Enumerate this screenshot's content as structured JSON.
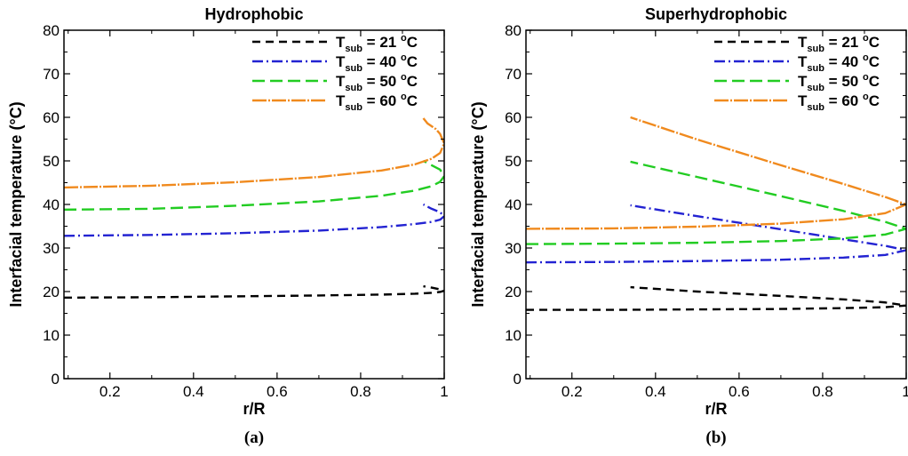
{
  "chart_data": [
    {
      "type": "line",
      "title": "Hydrophobic",
      "panel_label": "(a)",
      "xlabel": "r/R",
      "ylabel": "Interfacial temperature (°C)",
      "xlim": [
        0.09,
        1.0
      ],
      "ylim": [
        0,
        80
      ],
      "xticks": [
        0.2,
        0.4,
        0.6,
        0.8,
        1
      ],
      "xtick_labels": [
        "0.2",
        "0.4",
        "0.6",
        "0.8",
        "1"
      ],
      "yticks": [
        0,
        10,
        20,
        30,
        40,
        50,
        60,
        70,
        80
      ],
      "ytick_labels": [
        "0",
        "10",
        "20",
        "30",
        "40",
        "50",
        "60",
        "70",
        "80"
      ],
      "grid": false,
      "legend_position": "top-right",
      "series": [
        {
          "name": "T_sub = 21 °C",
          "legend_main": "T",
          "legend_sub": "sub",
          "legend_rest": " = 21 ",
          "legend_unit": "C",
          "color": "#000000",
          "dash": "9,6",
          "x": [
            0.09,
            0.3,
            0.5,
            0.7,
            0.85,
            0.93,
            0.97,
            0.99,
            1.0,
            0.99,
            0.97,
            0.95
          ],
          "y": [
            18.6,
            18.7,
            18.9,
            19.1,
            19.3,
            19.5,
            19.7,
            19.9,
            20.2,
            20.5,
            20.9,
            21.2
          ]
        },
        {
          "name": "T_sub = 40 °C",
          "legend_main": "T",
          "legend_sub": "sub",
          "legend_rest": " = 40 ",
          "legend_unit": "C",
          "color": "#2323d2",
          "dash": "12,4,2,4",
          "x": [
            0.09,
            0.3,
            0.5,
            0.7,
            0.85,
            0.93,
            0.97,
            0.99,
            1.0,
            0.99,
            0.97,
            0.95
          ],
          "y": [
            32.8,
            33.0,
            33.4,
            34.0,
            34.8,
            35.5,
            36.0,
            36.5,
            37.3,
            38.2,
            39.0,
            40.0
          ]
        },
        {
          "name": "T_sub = 50 °C",
          "legend_main": "T",
          "legend_sub": "sub",
          "legend_rest": " = 50 ",
          "legend_unit": "C",
          "color": "#22cc22",
          "dash": "14,6",
          "x": [
            0.09,
            0.3,
            0.5,
            0.7,
            0.85,
            0.93,
            0.97,
            0.99,
            1.0,
            0.99,
            0.97,
            0.95
          ],
          "y": [
            38.8,
            39.0,
            39.7,
            40.7,
            42.0,
            43.2,
            44.2,
            45.2,
            46.5,
            48.0,
            49.0,
            50.0
          ]
        },
        {
          "name": "T_sub = 60 °C",
          "legend_main": "T",
          "legend_sub": "sub",
          "legend_rest": " = 60 ",
          "legend_unit": "C",
          "color": "#f08a1e",
          "dash": "16,2,2,2",
          "x": [
            0.09,
            0.3,
            0.5,
            0.7,
            0.85,
            0.93,
            0.97,
            0.99,
            1.0,
            0.99,
            0.98,
            0.96,
            0.95
          ],
          "y": [
            43.9,
            44.3,
            45.1,
            46.3,
            47.8,
            49.2,
            50.5,
            51.8,
            54.0,
            56.2,
            57.3,
            58.6,
            59.8
          ]
        }
      ]
    },
    {
      "type": "line",
      "title": "Superhydrophobic",
      "panel_label": "(b)",
      "xlabel": "r/R",
      "ylabel": "Interfacial temperature (°C)",
      "xlim": [
        0.09,
        1.0
      ],
      "ylim": [
        0,
        80
      ],
      "xticks": [
        0.2,
        0.4,
        0.6,
        0.8,
        1
      ],
      "xtick_labels": [
        "0.2",
        "0.4",
        "0.6",
        "0.8",
        "1"
      ],
      "yticks": [
        0,
        10,
        20,
        30,
        40,
        50,
        60,
        70,
        80
      ],
      "ytick_labels": [
        "0",
        "10",
        "20",
        "30",
        "40",
        "50",
        "60",
        "70",
        "80"
      ],
      "grid": false,
      "legend_position": "top-right",
      "series": [
        {
          "name": "T_sub = 21 °C",
          "legend_main": "T",
          "legend_sub": "sub",
          "legend_rest": " = 21 ",
          "legend_unit": "C",
          "color": "#000000",
          "dash": "9,6",
          "x": [
            0.09,
            0.3,
            0.5,
            0.7,
            0.85,
            0.95,
            1.0,
            0.95,
            0.85,
            0.7,
            0.5,
            0.34
          ],
          "y": [
            15.8,
            15.8,
            15.9,
            16.0,
            16.2,
            16.4,
            16.8,
            17.5,
            18.2,
            19.0,
            20.0,
            21.0
          ]
        },
        {
          "name": "T_sub = 40 °C",
          "legend_main": "T",
          "legend_sub": "sub",
          "legend_rest": " = 40 ",
          "legend_unit": "C",
          "color": "#2323d2",
          "dash": "12,4,2,4",
          "x": [
            0.09,
            0.3,
            0.5,
            0.7,
            0.85,
            0.95,
            1.0,
            0.95,
            0.85,
            0.7,
            0.5,
            0.34
          ],
          "y": [
            26.7,
            26.8,
            27.0,
            27.3,
            27.8,
            28.4,
            29.5,
            30.5,
            32.0,
            34.3,
            37.3,
            39.8
          ]
        },
        {
          "name": "T_sub = 50 °C",
          "legend_main": "T",
          "legend_sub": "sub",
          "legend_rest": " = 50 ",
          "legend_unit": "C",
          "color": "#22cc22",
          "dash": "14,6",
          "x": [
            0.09,
            0.3,
            0.5,
            0.7,
            0.85,
            0.95,
            1.0,
            0.95,
            0.85,
            0.7,
            0.5,
            0.34
          ],
          "y": [
            30.9,
            31.0,
            31.2,
            31.6,
            32.2,
            33.1,
            34.4,
            36.0,
            38.5,
            41.9,
            46.3,
            49.8
          ]
        },
        {
          "name": "T_sub = 60 °C",
          "legend_main": "T",
          "legend_sub": "sub",
          "legend_rest": " = 60 ",
          "legend_unit": "C",
          "color": "#f08a1e",
          "dash": "16,2,2,2",
          "x": [
            0.09,
            0.3,
            0.5,
            0.7,
            0.85,
            0.95,
            1.0,
            0.95,
            0.85,
            0.7,
            0.5,
            0.34
          ],
          "y": [
            34.4,
            34.5,
            34.9,
            35.6,
            36.6,
            38.0,
            40.0,
            41.7,
            44.7,
            49.0,
            54.9,
            60.0
          ]
        }
      ]
    }
  ]
}
